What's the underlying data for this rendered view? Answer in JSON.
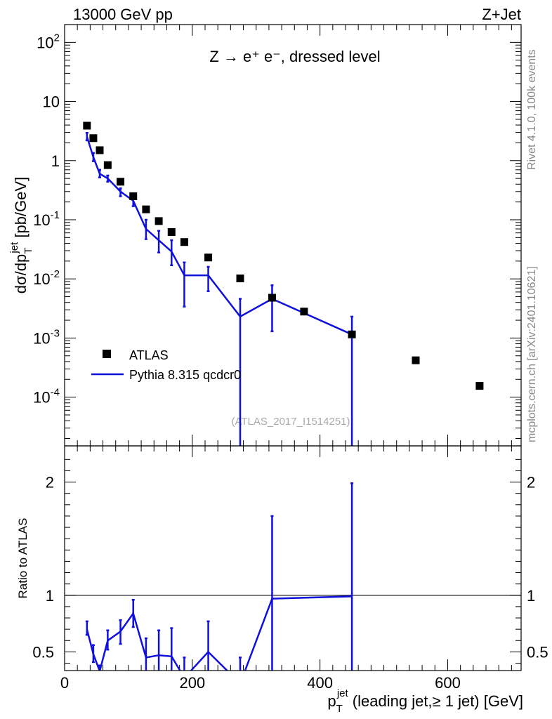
{
  "header": {
    "left": "13000 GeV pp",
    "right": "Z+Jet"
  },
  "side": {
    "rivet": "Rivet 4.1.0,  100k events",
    "source": "mcplots.cern.ch [arXiv:2401.10621]"
  },
  "chart_data": [
    {
      "type": "scatter",
      "panel": "main",
      "title": "Z → e⁺ e⁻, dressed level",
      "analysis": "(ATLAS_2017_I1514251)",
      "yscale": "log",
      "xlim": [
        0,
        715
      ],
      "ylim": [
        1.5e-05,
        200
      ],
      "legend_position": "middle-left",
      "y_ticks": [
        {
          "value": 100,
          "label": "10^2"
        },
        {
          "value": 10,
          "label": "10"
        },
        {
          "value": 1,
          "label": "1"
        },
        {
          "value": 0.1,
          "label": "10^-1"
        },
        {
          "value": 0.01,
          "label": "10^-2"
        },
        {
          "value": 0.001,
          "label": "10^-3"
        },
        {
          "value": 0.0001,
          "label": "10^-4"
        }
      ],
      "series": [
        {
          "name": "ATLAS",
          "marker": "square",
          "color": "#000000",
          "x": [
            35,
            45,
            55,
            67.5,
            87.5,
            107.5,
            127.5,
            147.5,
            167.5,
            187.5,
            225,
            275,
            325,
            375,
            450,
            550,
            650
          ],
          "y": [
            3.9,
            2.4,
            1.5,
            0.84,
            0.44,
            0.25,
            0.15,
            0.095,
            0.062,
            0.042,
            0.023,
            0.0102,
            0.0048,
            0.0028,
            0.00115,
            0.00042,
            0.000155
          ]
        },
        {
          "name": "Pythia 8.315 qcdcr0",
          "marker": "line",
          "color": "#1010dd",
          "x": [
            35,
            45,
            55,
            67.5,
            87.5,
            107.5,
            127.5,
            147.5,
            167.5,
            187.5,
            225,
            275,
            325,
            450
          ],
          "y": [
            2.55,
            1.15,
            0.6,
            0.5,
            0.3,
            0.21,
            0.07,
            0.045,
            0.029,
            0.0115,
            0.0115,
            0.0023,
            0.0046,
            0.00115
          ],
          "err_low": [
            2.2,
            0.98,
            0.52,
            0.44,
            0.25,
            0.17,
            0.047,
            0.028,
            0.017,
            0.0034,
            0.0062,
            1e-05,
            0.0013,
            1e-05
          ],
          "err_high": [
            2.95,
            1.35,
            0.7,
            0.56,
            0.34,
            0.245,
            0.1,
            0.065,
            0.045,
            0.019,
            0.016,
            0.0046,
            0.0078,
            0.0023
          ]
        }
      ]
    },
    {
      "type": "line",
      "panel": "ratio",
      "ylabel": "Ratio to ATLAS",
      "xlabel": "p_T^jet (leading jet,≥ 1 jet) [GeV]",
      "xlim": [
        0,
        715
      ],
      "ylim": [
        0.335,
        2.32
      ],
      "reference": 1,
      "x_ticks": [
        0,
        200,
        400,
        600
      ],
      "y_ticks": [
        0.5,
        1,
        2
      ],
      "series": [
        {
          "name": "Pythia 8.315 qcdcr0",
          "color": "#1010dd",
          "x": [
            35,
            45,
            55,
            67.5,
            87.5,
            107.5,
            127.5,
            147.5,
            167.5,
            187.5,
            225,
            275,
            325,
            450
          ],
          "y": [
            0.7,
            0.48,
            0.33,
            0.6,
            0.68,
            0.84,
            0.45,
            0.47,
            0.46,
            0.27,
            0.5,
            0.22,
            0.97,
            0.99
          ],
          "err_low": [
            0.65,
            0.41,
            0.29,
            0.52,
            0.57,
            0.72,
            0.31,
            0.3,
            0.28,
            0.08,
            0.27,
            0.0,
            0.28,
            0.0
          ],
          "err_high": [
            0.77,
            0.56,
            0.38,
            0.69,
            0.78,
            0.96,
            0.62,
            0.69,
            0.71,
            0.45,
            0.77,
            0.45,
            1.7,
            1.99
          ]
        }
      ]
    }
  ]
}
